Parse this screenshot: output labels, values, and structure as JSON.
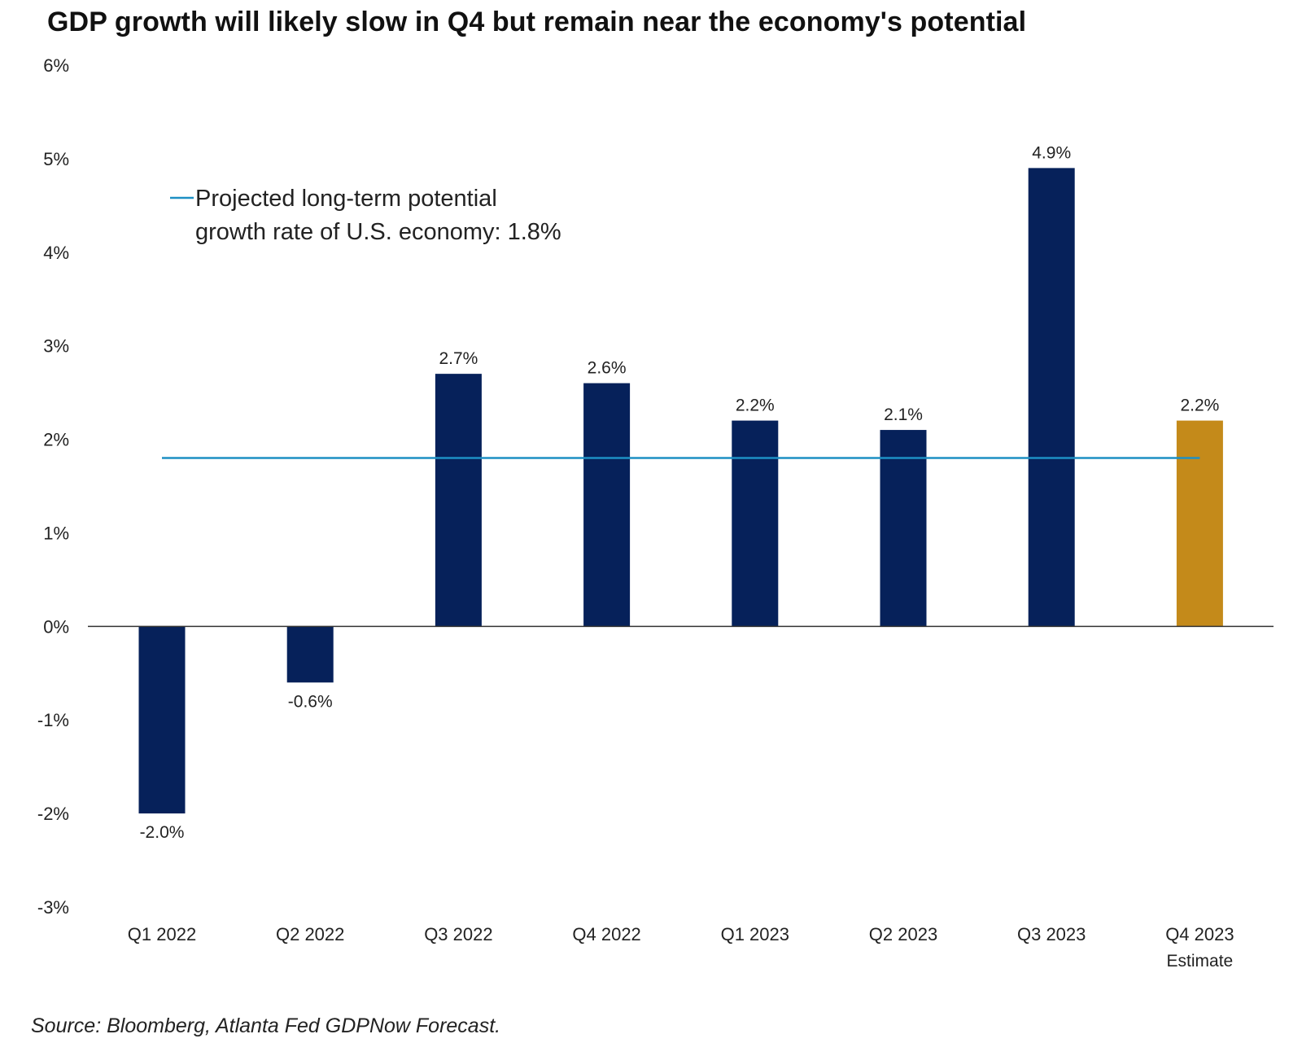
{
  "chart_data": {
    "type": "bar",
    "title": "GDP growth will likely slow in Q4 but remain near the economy's potential",
    "categories": [
      "Q1 2022",
      "Q2 2022",
      "Q3 2022",
      "Q4 2022",
      "Q1 2023",
      "Q2 2023",
      "Q3 2023",
      "Q4 2023"
    ],
    "category_sublabels": [
      "",
      "",
      "",
      "",
      "",
      "",
      "",
      "Estimate"
    ],
    "values": [
      -2.0,
      -0.6,
      2.7,
      2.6,
      2.2,
      2.1,
      4.9,
      2.2
    ],
    "data_labels": [
      "-2.0%",
      "-0.6%",
      "2.7%",
      "2.6%",
      "2.2%",
      "2.1%",
      "4.9%",
      "2.2%"
    ],
    "bar_colors": [
      "#06215a",
      "#06215a",
      "#06215a",
      "#06215a",
      "#06215a",
      "#06215a",
      "#06215a",
      "#c48a1a"
    ],
    "ylim": [
      -3,
      6
    ],
    "y_ticks": [
      6,
      5,
      4,
      3,
      2,
      1,
      0,
      -1,
      -2,
      -3
    ],
    "y_tick_labels": [
      "6%",
      "5%",
      "4%",
      "3%",
      "2%",
      "1%",
      "0%",
      "-1%",
      "-2%",
      "-3%"
    ],
    "xlabel": "",
    "ylabel": "",
    "grid": false,
    "reference_line": {
      "value": 1.8,
      "color": "#1d8fc4",
      "legend_line1": "Projected long-term potential",
      "legend_line2": "growth rate of U.S. economy: 1.8%",
      "legend_position": "top-left"
    },
    "source": "Source: Bloomberg, Atlanta Fed GDPNow Forecast."
  }
}
